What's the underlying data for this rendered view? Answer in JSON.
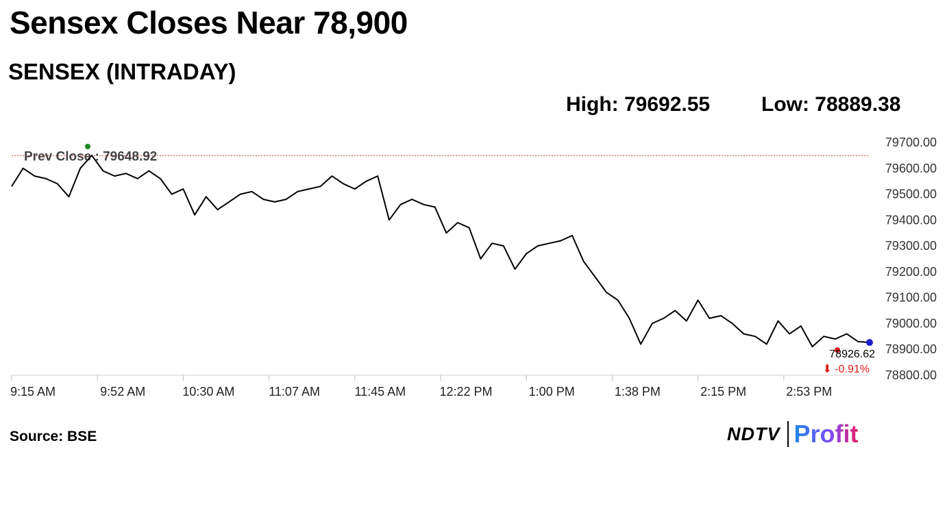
{
  "header": {
    "title": "Sensex Closes Near 78,900",
    "subtitle": "SENSEX (INTRADAY)"
  },
  "stats": {
    "high_text": "High: 79692.55",
    "low_text": "Low: 78889.38"
  },
  "source": "Source: BSE",
  "logo": {
    "ndtv": "NDTV",
    "profit": "Profit"
  },
  "colors": {
    "line": "#000000",
    "prev_close_line": "#e03030",
    "prev_close_dot": "#1a8a1a",
    "last_dot": "#1f1fd0",
    "low_dot": "#e01b1b",
    "change": "#e01b1b"
  },
  "chart_data": {
    "type": "line",
    "xlabel": "",
    "ylabel": "",
    "ylim": [
      78800,
      79700
    ],
    "y_ticks": [
      "79700.00",
      "79600.00",
      "79500.00",
      "79400.00",
      "79300.00",
      "79200.00",
      "79100.00",
      "79000.00",
      "78900.00",
      "78800.00"
    ],
    "x_ticks": [
      "9:15 AM",
      "9:52 AM",
      "10:30 AM",
      "11:07 AM",
      "11:45 AM",
      "12:22 PM",
      "1:00 PM",
      "1:38 PM",
      "2:15 PM",
      "2:53 PM"
    ],
    "x_start": "9:15 AM",
    "x_end": "3:30 PM",
    "prev_close": {
      "label": "Prev Close : 79648.92",
      "value": 79648.92
    },
    "last": {
      "value_text": "78926.62",
      "change_text": "⬇ -0.91%",
      "value": 78926.62
    },
    "grid": false,
    "legend": "none",
    "series": [
      {
        "x": [
          "9:15 AM",
          "9:20 AM",
          "9:25 AM",
          "9:30 AM",
          "9:35 AM",
          "9:40 AM",
          "9:45 AM",
          "9:50 AM",
          "9:55 AM",
          "10:00 AM",
          "10:05 AM",
          "10:10 AM",
          "10:15 AM",
          "10:20 AM",
          "10:25 AM",
          "10:30 AM",
          "10:35 AM",
          "10:40 AM",
          "10:45 AM",
          "10:50 AM",
          "10:55 AM",
          "11:00 AM",
          "11:05 AM",
          "11:10 AM",
          "11:15 AM",
          "11:20 AM",
          "11:25 AM",
          "11:30 AM",
          "11:35 AM",
          "11:40 AM",
          "11:45 AM",
          "11:50 AM",
          "11:55 AM",
          "12:00 PM",
          "12:05 PM",
          "12:10 PM",
          "12:15 PM",
          "12:20 PM",
          "12:25 PM",
          "12:30 PM",
          "12:35 PM",
          "12:40 PM",
          "12:45 PM",
          "12:50 PM",
          "12:55 PM",
          "1:00 PM",
          "1:05 PM",
          "1:10 PM",
          "1:15 PM",
          "1:20 PM",
          "1:25 PM",
          "1:30 PM",
          "1:35 PM",
          "1:40 PM",
          "1:45 PM",
          "1:50 PM",
          "1:55 PM",
          "2:00 PM",
          "2:05 PM",
          "2:10 PM",
          "2:15 PM",
          "2:20 PM",
          "2:25 PM",
          "2:30 PM",
          "2:35 PM",
          "2:40 PM",
          "2:45 PM",
          "2:50 PM",
          "2:55 PM",
          "3:00 PM",
          "3:05 PM",
          "3:10 PM",
          "3:15 PM",
          "3:20 PM",
          "3:25 PM",
          "3:30 PM"
        ],
        "values": [
          79530,
          79600,
          79570,
          79560,
          79540,
          79490,
          79600,
          79650,
          79590,
          79570,
          79580,
          79560,
          79590,
          79560,
          79500,
          79520,
          79420,
          79490,
          79440,
          79470,
          79500,
          79510,
          79480,
          79470,
          79480,
          79510,
          79520,
          79530,
          79570,
          79540,
          79520,
          79550,
          79570,
          79400,
          79460,
          79480,
          79460,
          79450,
          79350,
          79390,
          79370,
          79250,
          79310,
          79300,
          79210,
          79270,
          79300,
          79310,
          79320,
          79340,
          79240,
          79180,
          79120,
          79090,
          79020,
          78920,
          79000,
          79020,
          79050,
          79010,
          79090,
          79020,
          79030,
          79000,
          78960,
          78950,
          78920,
          79010,
          78960,
          78990,
          78910,
          78950,
          78940,
          78960,
          78930,
          78926.62
        ]
      }
    ]
  }
}
